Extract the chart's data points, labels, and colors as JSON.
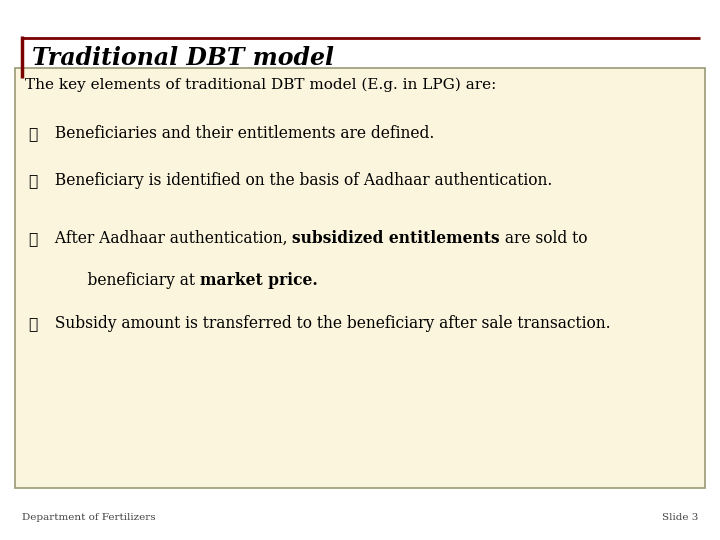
{
  "title": "Traditional DBT model",
  "subtitle": "The key elements of traditional DBT model (E.g. in LPG) are:",
  "bullet_symbol": "❖",
  "bullets_line1": [
    " Beneficiaries and their entitlements are defined.",
    " Beneficiary is identified on the basis of Aadhaar authentication.",
    " After Aadhaar authentication, ",
    " Subsidy amount is transferred to the beneficiary after sale transaction."
  ],
  "bullet3_bold": "subsidized entitlements",
  "bullet3_after_bold": " are sold to",
  "bullet3_line2_normal": "    beneficiary at ",
  "bullet3_line2_bold": "market price.",
  "footer_left": "Department of Fertilizers",
  "footer_right": "Slide 3",
  "bg_color": "#FFFFFF",
  "content_bg_color": "#FAF5DC",
  "title_color": "#000000",
  "title_bar_color": "#7B0000",
  "text_color": "#000000",
  "content_box_border_color": "#999977",
  "slide_bg": "#FFFFFF"
}
